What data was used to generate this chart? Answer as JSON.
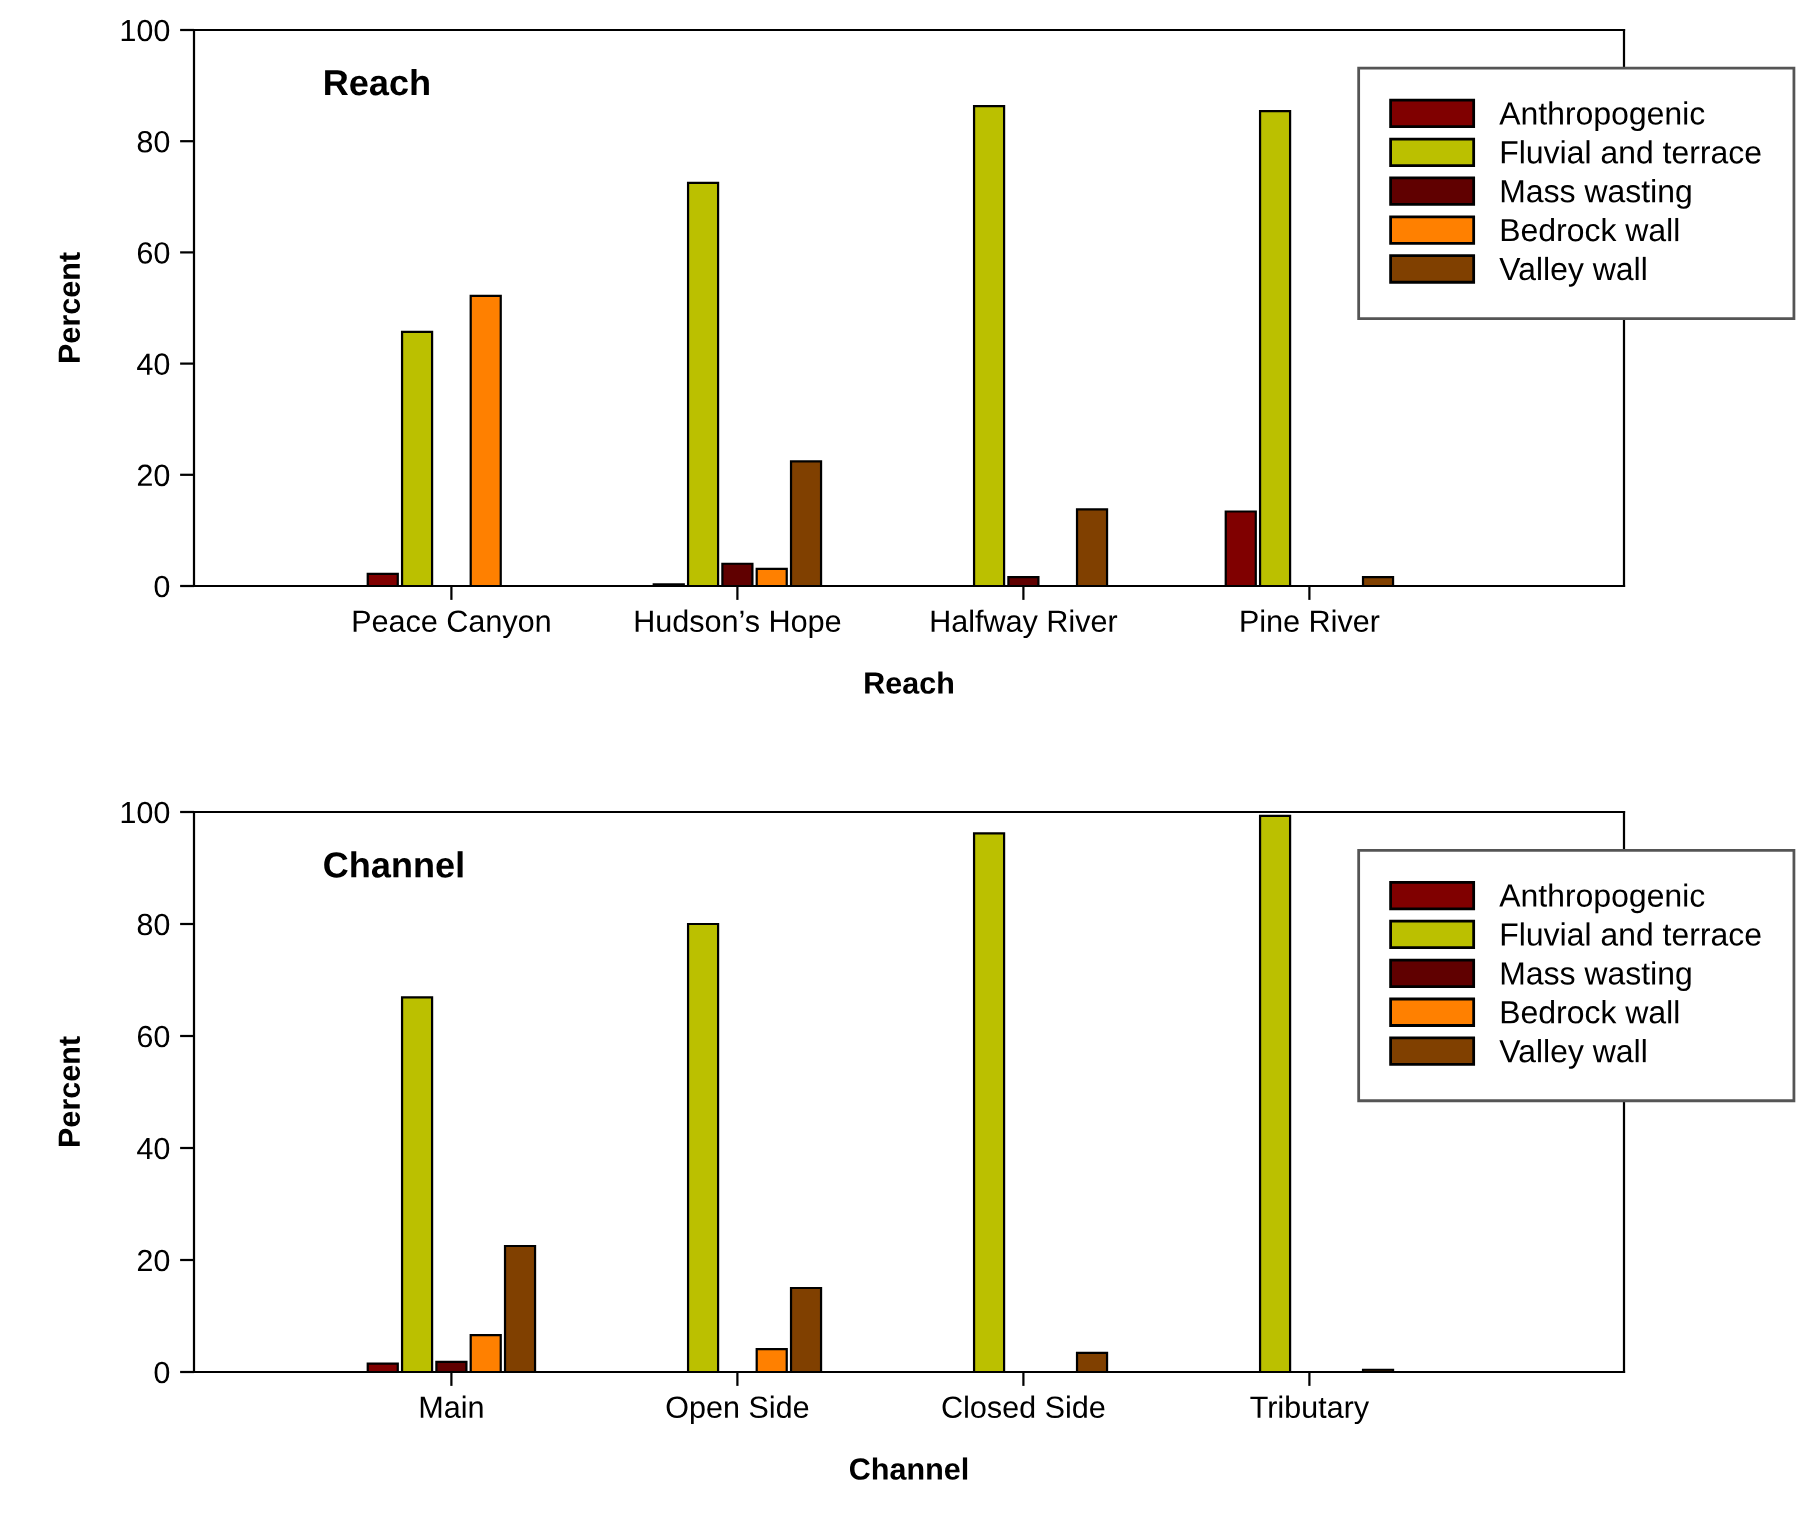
{
  "chart_data": [
    {
      "type": "bar",
      "title": "Reach",
      "xlabel": "Reach",
      "ylabel": "Percent",
      "categories": [
        "Peace Canyon",
        "Hudson’s Hope",
        "Halfway River",
        "Pine River"
      ],
      "ylim": [
        0,
        100
      ],
      "yticks": [
        0,
        20,
        40,
        60,
        80,
        100
      ],
      "legend": "top right",
      "grid": false,
      "series": [
        {
          "name": "Anthropogenic",
          "color": "#800000",
          "values": [
            2.2,
            0.3,
            null,
            13.4
          ]
        },
        {
          "name": "Fluvial and terrace",
          "color": "#bbc000",
          "values": [
            45.7,
            72.5,
            86.3,
            85.4
          ]
        },
        {
          "name": "Mass wasting",
          "color": "#600000",
          "values": [
            null,
            4.0,
            1.6,
            null
          ]
        },
        {
          "name": "Bedrock wall",
          "color": "#ff8000",
          "values": [
            52.2,
            3.1,
            null,
            null
          ]
        },
        {
          "name": "Valley wall",
          "color": "#804000",
          "values": [
            null,
            22.4,
            13.8,
            1.6
          ]
        }
      ]
    },
    {
      "type": "bar",
      "title": "Channel",
      "xlabel": "Channel",
      "ylabel": "Percent",
      "categories": [
        "Main",
        "Open Side",
        "Closed Side",
        "Tributary"
      ],
      "ylim": [
        0,
        100
      ],
      "yticks": [
        0,
        20,
        40,
        60,
        80,
        100
      ],
      "legend": "top right",
      "grid": false,
      "series": [
        {
          "name": "Anthropogenic",
          "color": "#800000",
          "values": [
            1.5,
            null,
            null,
            null
          ]
        },
        {
          "name": "Fluvial and terrace",
          "color": "#bbc000",
          "values": [
            66.9,
            80.0,
            96.2,
            99.3
          ]
        },
        {
          "name": "Mass wasting",
          "color": "#600000",
          "values": [
            1.8,
            null,
            null,
            null
          ]
        },
        {
          "name": "Bedrock wall",
          "color": "#ff8000",
          "values": [
            6.6,
            4.1,
            null,
            null
          ]
        },
        {
          "name": "Valley wall",
          "color": "#804000",
          "values": [
            22.5,
            15.0,
            3.4,
            0.4
          ]
        }
      ]
    }
  ]
}
